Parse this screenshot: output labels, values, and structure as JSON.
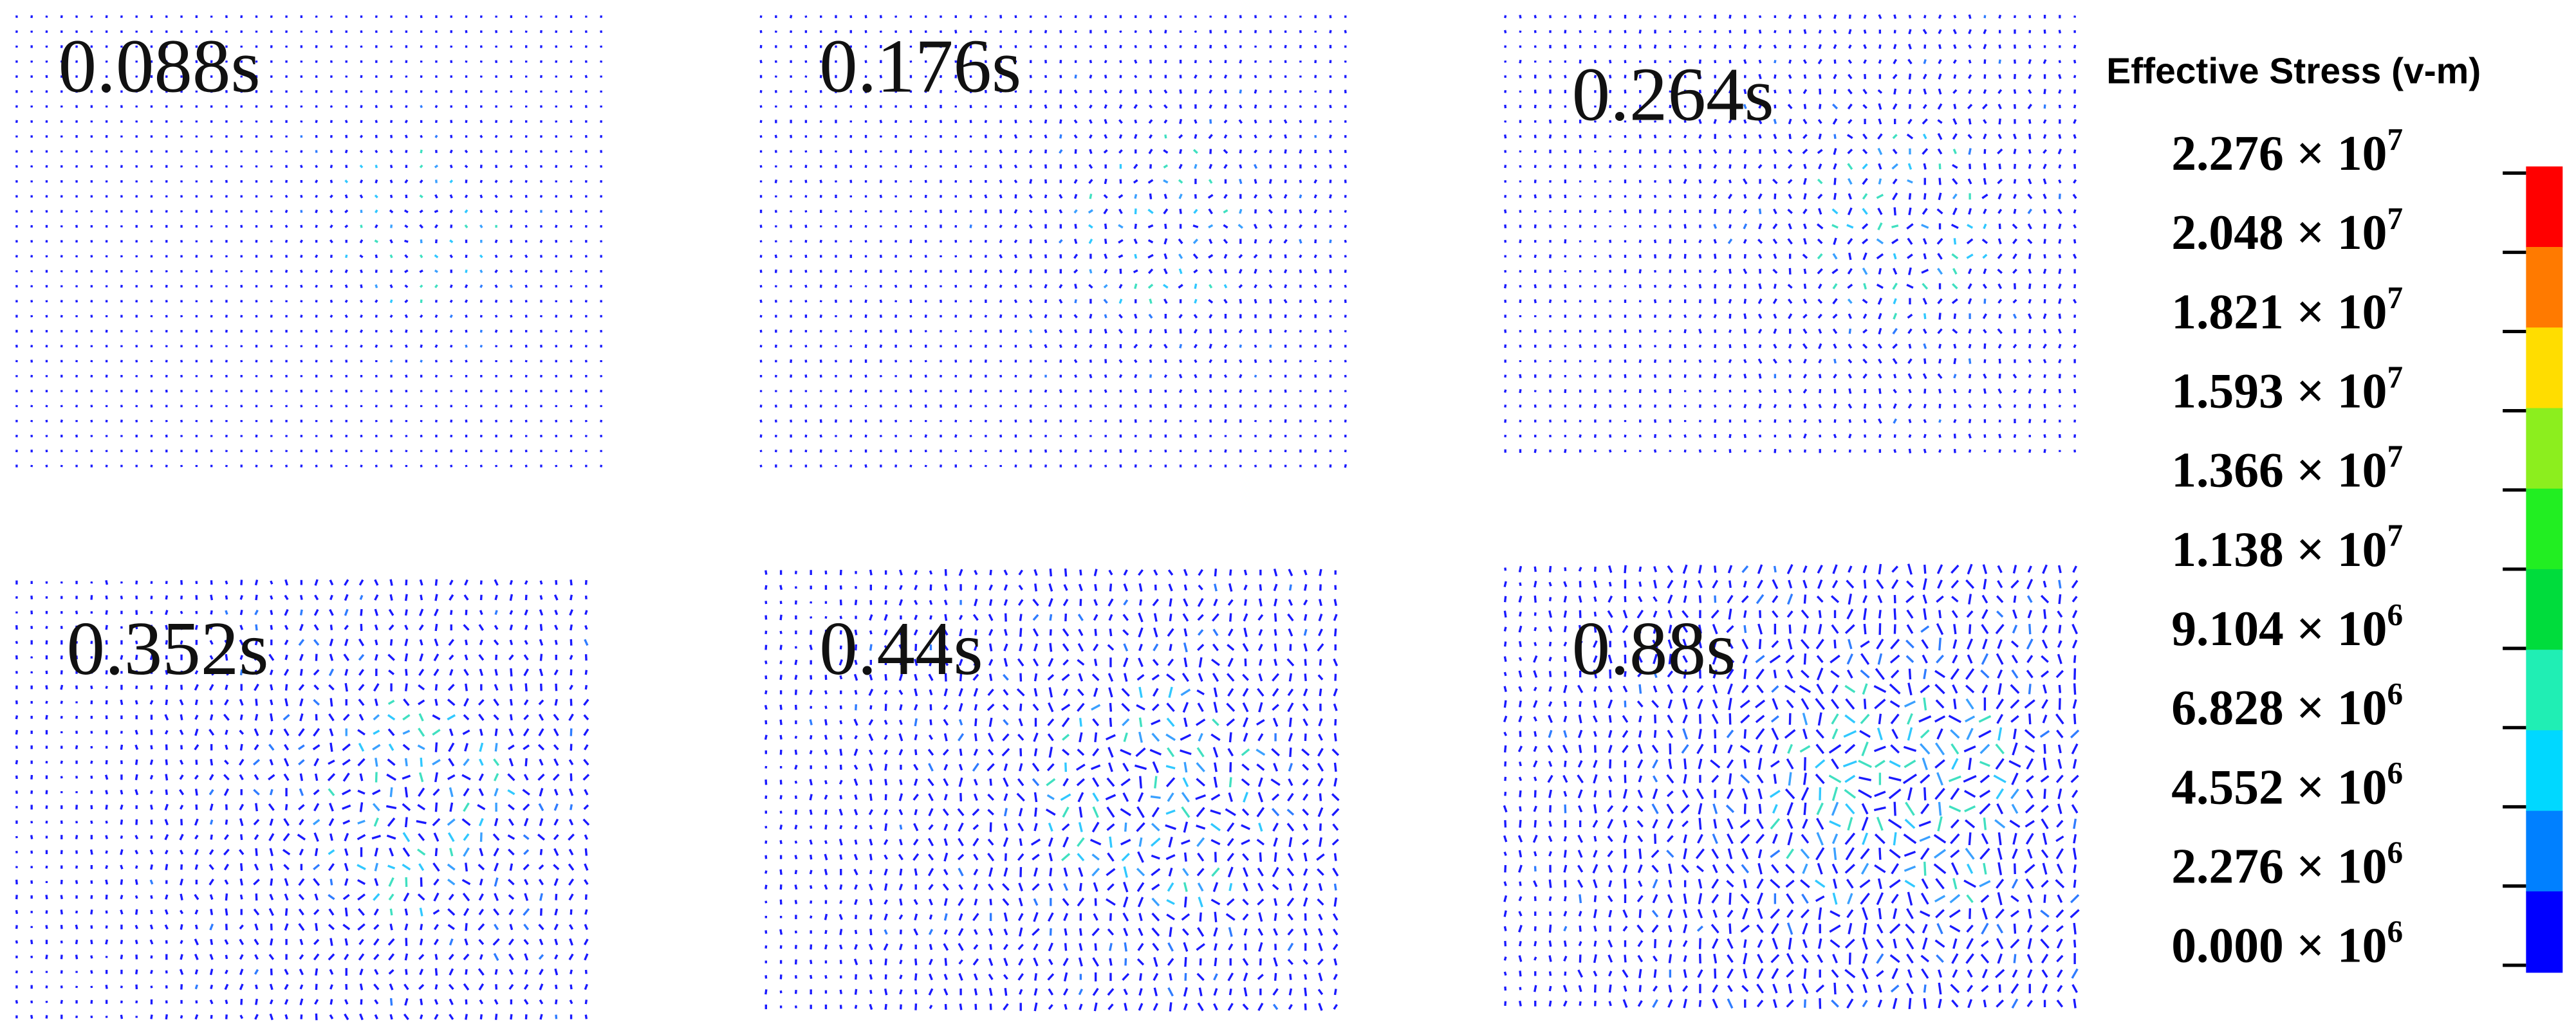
{
  "panels": [
    {
      "label": "0.088s"
    },
    {
      "label": "0.176s"
    },
    {
      "label": "0.264s"
    },
    {
      "label": "0.352s"
    },
    {
      "label": "0.44s"
    },
    {
      "label": "0.88s"
    }
  ],
  "legend": {
    "title": "Effective Stress (v-m)",
    "colors": [
      "#ff0000",
      "#ff7a00",
      "#ffdd00",
      "#8cee1e",
      "#22ee22",
      "#00dc3c",
      "#20eeb4",
      "#00d8ff",
      "#0080ff",
      "#0000ff"
    ],
    "labels": [
      {
        "text": "2.276 × 10",
        "exponent": "7"
      },
      {
        "text": "2.048 × 10",
        "exponent": "7"
      },
      {
        "text": "1.821 × 10",
        "exponent": "7"
      },
      {
        "text": "1.593 × 10",
        "exponent": "7"
      },
      {
        "text": "1.366 × 10",
        "exponent": "7"
      },
      {
        "text": "1.138 × 10",
        "exponent": "7"
      },
      {
        "text": "9.104 × 10",
        "exponent": "6"
      },
      {
        "text": "6.828 × 10",
        "exponent": "6"
      },
      {
        "text": "4.552 × 10",
        "exponent": "6"
      },
      {
        "text": "2.276 × 10",
        "exponent": "6"
      },
      {
        "text": "0.000 × 10",
        "exponent": "6"
      }
    ]
  }
}
